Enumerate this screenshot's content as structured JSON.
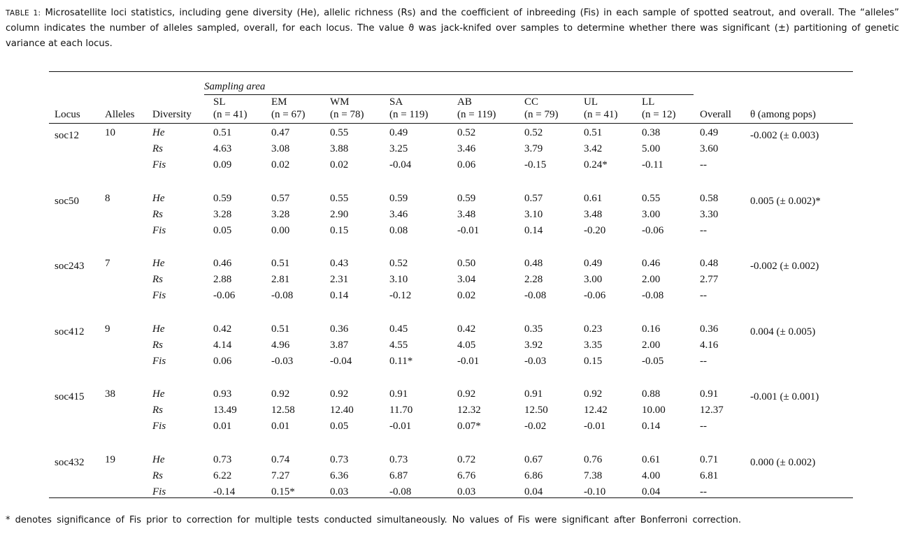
{
  "caption": {
    "tag": "TABLE 1:",
    "text": "Microsatellite loci statistics, including gene diversity (He), allelic richness (Rs) and the coefficient of inbreeding (Fis) in each sample of spotted seatrout, and overall.  The “alleles” column indicates the number of alleles sampled, overall, for each locus.  The value ϑ was jack-knifed over samples to determine whether there was significant (±) partitioning of genetic variance at each locus."
  },
  "table": {
    "sampling_area_label": "Sampling area",
    "headers": {
      "locus": "Locus",
      "alleles": "Alleles",
      "diversity": "Diversity",
      "overall": "Overall",
      "theta": "θ (among pops)"
    },
    "areas": [
      {
        "code": "SL",
        "n": "(n = 41)"
      },
      {
        "code": "EM",
        "n": "(n = 67)"
      },
      {
        "code": "WM",
        "n": "(n = 78)"
      },
      {
        "code": "SA",
        "n": "(n = 119)"
      },
      {
        "code": "AB",
        "n": "(n = 119)"
      },
      {
        "code": "CC",
        "n": "(n = 79)"
      },
      {
        "code": "UL",
        "n": "(n = 41)"
      },
      {
        "code": "LL",
        "n": "(n = 12)"
      }
    ],
    "diversity_labels": [
      "He",
      "Rs",
      "Fis"
    ],
    "loci": [
      {
        "locus": "soc12",
        "alleles": "10",
        "theta": "-0.002 (± 0.003)",
        "rows": [
          [
            "0.51",
            "0.47",
            "0.55",
            "0.49",
            "0.52",
            "0.52",
            "0.51",
            "0.38",
            "0.49"
          ],
          [
            "4.63",
            "3.08",
            "3.88",
            "3.25",
            "3.46",
            "3.79",
            "3.42",
            "5.00",
            "3.60"
          ],
          [
            "0.09",
            "0.02",
            "0.02",
            "-0.04",
            "0.06",
            "-0.15",
            "0.24*",
            "-0.11",
            "--"
          ]
        ]
      },
      {
        "locus": "soc50",
        "alleles": "8",
        "theta": "0.005 (± 0.002)*",
        "rows": [
          [
            "0.59",
            "0.57",
            "0.55",
            "0.59",
            "0.59",
            "0.57",
            "0.61",
            "0.55",
            "0.58"
          ],
          [
            "3.28",
            "3.28",
            "2.90",
            "3.46",
            "3.48",
            "3.10",
            "3.48",
            "3.00",
            "3.30"
          ],
          [
            "0.05",
            "0.00",
            "0.15",
            "0.08",
            "-0.01",
            "0.14",
            "-0.20",
            "-0.06",
            "--"
          ]
        ]
      },
      {
        "locus": "soc243",
        "alleles": "7",
        "theta": "-0.002 (± 0.002)",
        "rows": [
          [
            "0.46",
            "0.51",
            "0.43",
            "0.52",
            "0.50",
            "0.48",
            "0.49",
            "0.46",
            "0.48"
          ],
          [
            "2.88",
            "2.81",
            "2.31",
            "3.10",
            "3.04",
            "2.28",
            "3.00",
            "2.00",
            "2.77"
          ],
          [
            "-0.06",
            "-0.08",
            "0.14",
            "-0.12",
            "0.02",
            "-0.08",
            "-0.06",
            "-0.08",
            "--"
          ]
        ]
      },
      {
        "locus": "soc412",
        "alleles": "9",
        "theta": "0.004 (± 0.005)",
        "rows": [
          [
            "0.42",
            "0.51",
            "0.36",
            "0.45",
            "0.42",
            "0.35",
            "0.23",
            "0.16",
            "0.36"
          ],
          [
            "4.14",
            "4.96",
            "3.87",
            "4.55",
            "4.05",
            "3.92",
            "3.35",
            "2.00",
            "4.16"
          ],
          [
            "0.06",
            "-0.03",
            "-0.04",
            "0.11*",
            "-0.01",
            "-0.03",
            "0.15",
            "-0.05",
            "--"
          ]
        ]
      },
      {
        "locus": "soc415",
        "alleles": "38",
        "theta": "-0.001 (± 0.001)",
        "rows": [
          [
            "0.93",
            "0.92",
            "0.92",
            "0.91",
            "0.92",
            "0.91",
            "0.92",
            "0.88",
            "0.91"
          ],
          [
            "13.49",
            "12.58",
            "12.40",
            "11.70",
            "12.32",
            "12.50",
            "12.42",
            "10.00",
            "12.37"
          ],
          [
            "0.01",
            "0.01",
            "0.05",
            "-0.01",
            "0.07*",
            "-0.02",
            "-0.01",
            "0.14",
            "--"
          ]
        ]
      },
      {
        "locus": "soc432",
        "alleles": "19",
        "theta": "0.000 (± 0.002)",
        "rows": [
          [
            "0.73",
            "0.74",
            "0.73",
            "0.73",
            "0.72",
            "0.67",
            "0.76",
            "0.61",
            "0.71"
          ],
          [
            "6.22",
            "7.27",
            "6.36",
            "6.87",
            "6.76",
            "6.86",
            "7.38",
            "4.00",
            "6.81"
          ],
          [
            "-0.14",
            "0.15*",
            "0.03",
            "-0.08",
            "0.03",
            "0.04",
            "-0.10",
            "0.04",
            "--"
          ]
        ]
      }
    ]
  },
  "footnote": "* denotes significance of Fis prior to correction for multiple tests conducted simultaneously.  No values of Fis were significant after Bonferroni correction."
}
